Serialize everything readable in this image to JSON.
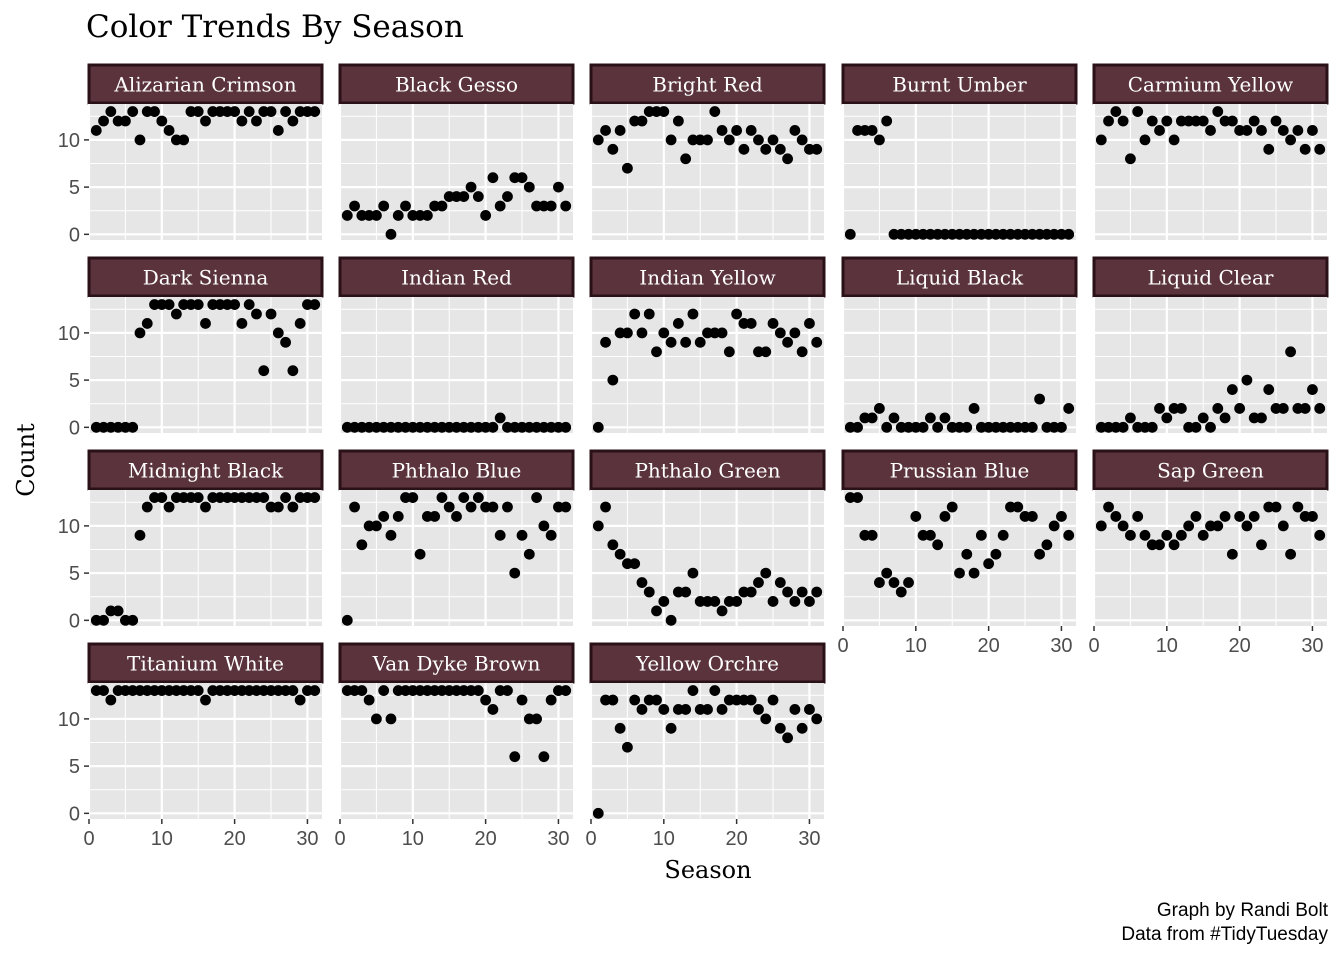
{
  "chart_data": {
    "type": "scatter",
    "title": "Color Trends By Season",
    "xlabel": "Season",
    "ylabel": "Count",
    "caption": [
      "Graph by Randi Bolt",
      "Data from #TidyTuesday"
    ],
    "xlim": [
      0,
      32
    ],
    "ylim": [
      -0.6,
      13.8
    ],
    "xticks": [
      0,
      10,
      20,
      30
    ],
    "yticks": [
      0,
      5,
      10
    ],
    "grid": true,
    "legend": "none",
    "colors": {
      "strip_fill": "#5a333c",
      "strip_border": "#2a1117",
      "strip_text": "#ffffff",
      "panel_bg": "#e6e6e6",
      "grid": "#ffffff",
      "point": "#000000",
      "tick": "#4d4d4d"
    },
    "facets": [
      {
        "name": "Alizarian Crimson",
        "x": [
          1,
          2,
          3,
          4,
          5,
          6,
          7,
          8,
          9,
          10,
          11,
          12,
          13,
          14,
          15,
          16,
          17,
          18,
          19,
          20,
          21,
          22,
          23,
          24,
          25,
          26,
          27,
          28,
          29,
          30,
          31
        ],
        "y": [
          11,
          12,
          13,
          12,
          12,
          13,
          10,
          13,
          13,
          12,
          11,
          10,
          10,
          13,
          13,
          12,
          13,
          13,
          13,
          13,
          12,
          13,
          12,
          13,
          13,
          11,
          13,
          12,
          13,
          13,
          13
        ]
      },
      {
        "name": "Black Gesso",
        "x": [
          1,
          2,
          3,
          4,
          5,
          6,
          7,
          8,
          9,
          10,
          11,
          12,
          13,
          14,
          15,
          16,
          17,
          18,
          19,
          20,
          21,
          22,
          23,
          24,
          25,
          26,
          27,
          28,
          29,
          30,
          31
        ],
        "y": [
          2,
          3,
          2,
          2,
          2,
          3,
          0,
          2,
          3,
          2,
          2,
          2,
          3,
          3,
          4,
          4,
          4,
          5,
          4,
          2,
          6,
          3,
          4,
          6,
          6,
          5,
          3,
          3,
          3,
          5,
          3
        ]
      },
      {
        "name": "Bright Red",
        "x": [
          1,
          2,
          3,
          4,
          5,
          6,
          7,
          8,
          9,
          10,
          11,
          12,
          13,
          14,
          15,
          16,
          17,
          18,
          19,
          20,
          21,
          22,
          23,
          24,
          25,
          26,
          27,
          28,
          29,
          30,
          31
        ],
        "y": [
          10,
          11,
          9,
          11,
          7,
          12,
          12,
          13,
          13,
          13,
          10,
          12,
          8,
          10,
          10,
          10,
          13,
          11,
          10,
          11,
          9,
          11,
          10,
          9,
          10,
          9,
          8,
          11,
          10,
          9,
          9
        ]
      },
      {
        "name": "Burnt Umber",
        "x": [
          1,
          2,
          3,
          4,
          5,
          6,
          7,
          8,
          9,
          10,
          11,
          12,
          13,
          14,
          15,
          16,
          17,
          18,
          19,
          20,
          21,
          22,
          23,
          24,
          25,
          26,
          27,
          28,
          29,
          30,
          31
        ],
        "y": [
          0,
          11,
          11,
          11,
          10,
          12,
          0,
          0,
          0,
          0,
          0,
          0,
          0,
          0,
          0,
          0,
          0,
          0,
          0,
          0,
          0,
          0,
          0,
          0,
          0,
          0,
          0,
          0,
          0,
          0,
          0
        ]
      },
      {
        "name": "Carmium Yellow",
        "x": [
          1,
          2,
          3,
          4,
          5,
          6,
          7,
          8,
          9,
          10,
          11,
          12,
          13,
          14,
          15,
          16,
          17,
          18,
          19,
          20,
          21,
          22,
          23,
          24,
          25,
          26,
          27,
          28,
          29,
          30,
          31
        ],
        "y": [
          10,
          12,
          13,
          12,
          8,
          13,
          10,
          12,
          11,
          12,
          10,
          12,
          12,
          12,
          12,
          11,
          13,
          12,
          12,
          11,
          11,
          12,
          11,
          9,
          12,
          11,
          10,
          11,
          9,
          11,
          9
        ]
      },
      {
        "name": "Dark Sienna",
        "x": [
          1,
          2,
          3,
          4,
          5,
          6,
          7,
          8,
          9,
          10,
          11,
          12,
          13,
          14,
          15,
          16,
          17,
          18,
          19,
          20,
          21,
          22,
          23,
          24,
          25,
          26,
          27,
          28,
          29,
          30,
          31
        ],
        "y": [
          0,
          0,
          0,
          0,
          0,
          0,
          10,
          11,
          13,
          13,
          13,
          12,
          13,
          13,
          13,
          11,
          13,
          13,
          13,
          13,
          11,
          13,
          12,
          6,
          12,
          10,
          9,
          6,
          11,
          13,
          13
        ]
      },
      {
        "name": "Indian Red",
        "x": [
          1,
          2,
          3,
          4,
          5,
          6,
          7,
          8,
          9,
          10,
          11,
          12,
          13,
          14,
          15,
          16,
          17,
          18,
          19,
          20,
          21,
          22,
          23,
          24,
          25,
          26,
          27,
          28,
          29,
          30,
          31
        ],
        "y": [
          0,
          0,
          0,
          0,
          0,
          0,
          0,
          0,
          0,
          0,
          0,
          0,
          0,
          0,
          0,
          0,
          0,
          0,
          0,
          0,
          0,
          1,
          0,
          0,
          0,
          0,
          0,
          0,
          0,
          0,
          0
        ]
      },
      {
        "name": "Indian Yellow",
        "x": [
          1,
          2,
          3,
          4,
          5,
          6,
          7,
          8,
          9,
          10,
          11,
          12,
          13,
          14,
          15,
          16,
          17,
          18,
          19,
          20,
          21,
          22,
          23,
          24,
          25,
          26,
          27,
          28,
          29,
          30,
          31
        ],
        "y": [
          0,
          9,
          5,
          10,
          10,
          12,
          10,
          12,
          8,
          10,
          9,
          11,
          9,
          12,
          9,
          10,
          10,
          10,
          8,
          12,
          11,
          11,
          8,
          8,
          11,
          10,
          9,
          10,
          8,
          11,
          9
        ]
      },
      {
        "name": "Liquid Black",
        "x": [
          1,
          2,
          3,
          4,
          5,
          6,
          7,
          8,
          9,
          10,
          11,
          12,
          13,
          14,
          15,
          16,
          17,
          18,
          19,
          20,
          21,
          22,
          23,
          24,
          25,
          26,
          27,
          28,
          29,
          30,
          31
        ],
        "y": [
          0,
          0,
          1,
          1,
          2,
          0,
          1,
          0,
          0,
          0,
          0,
          1,
          0,
          1,
          0,
          0,
          0,
          2,
          0,
          0,
          0,
          0,
          0,
          0,
          0,
          0,
          3,
          0,
          0,
          0,
          2
        ]
      },
      {
        "name": "Liquid Clear",
        "x": [
          1,
          2,
          3,
          4,
          5,
          6,
          7,
          8,
          9,
          10,
          11,
          12,
          13,
          14,
          15,
          16,
          17,
          18,
          19,
          20,
          21,
          22,
          23,
          24,
          25,
          26,
          27,
          28,
          29,
          30,
          31
        ],
        "y": [
          0,
          0,
          0,
          0,
          1,
          0,
          0,
          0,
          2,
          1,
          2,
          2,
          0,
          0,
          1,
          0,
          2,
          1,
          4,
          2,
          5,
          1,
          1,
          4,
          2,
          2,
          8,
          2,
          2,
          4,
          2
        ]
      },
      {
        "name": "Midnight Black",
        "x": [
          1,
          2,
          3,
          4,
          5,
          6,
          7,
          8,
          9,
          10,
          11,
          12,
          13,
          14,
          15,
          16,
          17,
          18,
          19,
          20,
          21,
          22,
          23,
          24,
          25,
          26,
          27,
          28,
          29,
          30,
          31
        ],
        "y": [
          0,
          0,
          1,
          1,
          0,
          0,
          9,
          12,
          13,
          13,
          12,
          13,
          13,
          13,
          13,
          12,
          13,
          13,
          13,
          13,
          13,
          13,
          13,
          13,
          12,
          12,
          13,
          12,
          13,
          13,
          13
        ]
      },
      {
        "name": "Phthalo Blue",
        "x": [
          1,
          2,
          3,
          4,
          5,
          6,
          7,
          8,
          9,
          10,
          11,
          12,
          13,
          14,
          15,
          16,
          17,
          18,
          19,
          20,
          21,
          22,
          23,
          24,
          25,
          26,
          27,
          28,
          29,
          30,
          31
        ],
        "y": [
          0,
          12,
          8,
          10,
          10,
          11,
          9,
          11,
          13,
          13,
          7,
          11,
          11,
          13,
          12,
          11,
          13,
          12,
          13,
          12,
          12,
          9,
          12,
          5,
          9,
          7,
          13,
          10,
          9,
          12,
          12
        ]
      },
      {
        "name": "Phthalo Green",
        "x": [
          1,
          2,
          3,
          4,
          5,
          6,
          7,
          8,
          9,
          10,
          11,
          12,
          13,
          14,
          15,
          16,
          17,
          18,
          19,
          20,
          21,
          22,
          23,
          24,
          25,
          26,
          27,
          28,
          29,
          30,
          31
        ],
        "y": [
          10,
          12,
          8,
          7,
          6,
          6,
          4,
          3,
          1,
          2,
          0,
          3,
          3,
          5,
          2,
          2,
          2,
          1,
          2,
          2,
          3,
          3,
          4,
          5,
          2,
          4,
          3,
          2,
          3,
          2,
          3
        ]
      },
      {
        "name": "Prussian Blue",
        "x": [
          1,
          2,
          3,
          4,
          5,
          6,
          7,
          8,
          9,
          10,
          11,
          12,
          13,
          14,
          15,
          16,
          17,
          18,
          19,
          20,
          21,
          22,
          23,
          24,
          25,
          26,
          27,
          28,
          29,
          30,
          31
        ],
        "y": [
          13,
          13,
          9,
          9,
          4,
          5,
          4,
          3,
          4,
          11,
          9,
          9,
          8,
          11,
          12,
          5,
          7,
          5,
          9,
          6,
          7,
          9,
          12,
          12,
          11,
          11,
          7,
          8,
          10,
          11,
          9
        ]
      },
      {
        "name": "Sap Green",
        "x": [
          1,
          2,
          3,
          4,
          5,
          6,
          7,
          8,
          9,
          10,
          11,
          12,
          13,
          14,
          15,
          16,
          17,
          18,
          19,
          20,
          21,
          22,
          23,
          24,
          25,
          26,
          27,
          28,
          29,
          30,
          31
        ],
        "y": [
          10,
          12,
          11,
          10,
          9,
          11,
          9,
          8,
          8,
          9,
          8,
          9,
          10,
          11,
          9,
          10,
          10,
          11,
          7,
          11,
          10,
          11,
          8,
          12,
          12,
          10,
          7,
          12,
          11,
          11,
          9
        ]
      },
      {
        "name": "Titanium White",
        "x": [
          1,
          2,
          3,
          4,
          5,
          6,
          7,
          8,
          9,
          10,
          11,
          12,
          13,
          14,
          15,
          16,
          17,
          18,
          19,
          20,
          21,
          22,
          23,
          24,
          25,
          26,
          27,
          28,
          29,
          30,
          31
        ],
        "y": [
          13,
          13,
          12,
          13,
          13,
          13,
          13,
          13,
          13,
          13,
          13,
          13,
          13,
          13,
          13,
          12,
          13,
          13,
          13,
          13,
          13,
          13,
          13,
          13,
          13,
          13,
          13,
          13,
          12,
          13,
          13
        ]
      },
      {
        "name": "Van Dyke Brown",
        "x": [
          1,
          2,
          3,
          4,
          5,
          6,
          7,
          8,
          9,
          10,
          11,
          12,
          13,
          14,
          15,
          16,
          17,
          18,
          19,
          20,
          21,
          22,
          23,
          24,
          25,
          26,
          27,
          28,
          29,
          30,
          31
        ],
        "y": [
          13,
          13,
          13,
          12,
          10,
          13,
          10,
          13,
          13,
          13,
          13,
          13,
          13,
          13,
          13,
          13,
          13,
          13,
          13,
          12,
          11,
          13,
          13,
          6,
          12,
          10,
          10,
          6,
          12,
          13,
          13
        ]
      },
      {
        "name": "Yellow Orchre",
        "x": [
          1,
          2,
          3,
          4,
          5,
          6,
          7,
          8,
          9,
          10,
          11,
          12,
          13,
          14,
          15,
          16,
          17,
          18,
          19,
          20,
          21,
          22,
          23,
          24,
          25,
          26,
          27,
          28,
          29,
          30,
          31
        ],
        "y": [
          0,
          12,
          12,
          9,
          7,
          12,
          11,
          12,
          12,
          11,
          9,
          11,
          11,
          13,
          11,
          11,
          13,
          11,
          12,
          12,
          12,
          12,
          11,
          10,
          12,
          9,
          8,
          11,
          9,
          11,
          10
        ]
      }
    ]
  }
}
